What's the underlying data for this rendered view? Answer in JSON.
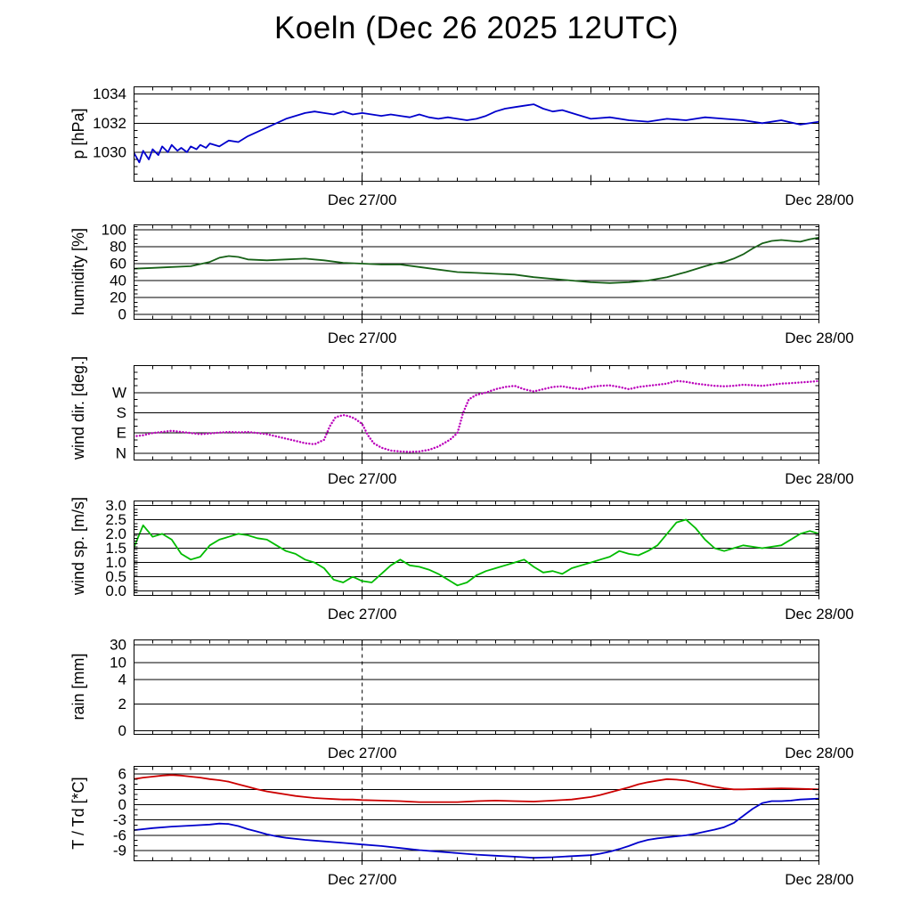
{
  "title": "Koeln (Dec 26 2025 12UTC)",
  "x_axis": {
    "range": [
      0,
      36
    ],
    "minor_step": 1,
    "major_ticks": [
      12,
      24,
      36
    ],
    "labeled_ticks": [
      {
        "value": 12,
        "label": "Dec 27/00"
      },
      {
        "value": 36,
        "label": "Dec 28/00"
      }
    ],
    "vline": {
      "value": 12,
      "style": "dashed"
    }
  },
  "chart_data": [
    {
      "type": "line",
      "ylabel": "p [hPa]",
      "ylim": [
        1028,
        1034.5
      ],
      "y_minor_step": 0.5,
      "yticks": [
        {
          "value": 1030,
          "label": "1030"
        },
        {
          "value": 1032,
          "label": "1032"
        },
        {
          "value": 1034,
          "label": "1034"
        }
      ],
      "series": [
        {
          "name": "pressure",
          "color": "#0000cc",
          "x": [
            0,
            0.3,
            0.5,
            0.8,
            1,
            1.3,
            1.5,
            1.8,
            2,
            2.3,
            2.5,
            2.8,
            3,
            3.3,
            3.5,
            3.8,
            4,
            4.5,
            5,
            5.5,
            6,
            6.5,
            7,
            7.5,
            8,
            8.5,
            9,
            9.5,
            10,
            10.5,
            11,
            11.5,
            12,
            12.5,
            13,
            13.5,
            14,
            14.5,
            15,
            15.5,
            16,
            16.5,
            17,
            17.5,
            18,
            18.5,
            19,
            19.5,
            20,
            20.5,
            21,
            21.5,
            22,
            22.5,
            23,
            23.5,
            24,
            25,
            26,
            27,
            28,
            29,
            30,
            31,
            32,
            33,
            34,
            35,
            36
          ],
          "values": [
            1030.0,
            1029.3,
            1030.1,
            1029.5,
            1030.2,
            1029.8,
            1030.4,
            1030.0,
            1030.5,
            1030.1,
            1030.3,
            1030.0,
            1030.4,
            1030.2,
            1030.5,
            1030.3,
            1030.6,
            1030.4,
            1030.8,
            1030.7,
            1031.1,
            1031.4,
            1031.7,
            1032.0,
            1032.3,
            1032.5,
            1032.7,
            1032.8,
            1032.7,
            1032.6,
            1032.8,
            1032.6,
            1032.7,
            1032.6,
            1032.5,
            1032.6,
            1032.5,
            1032.4,
            1032.6,
            1032.4,
            1032.3,
            1032.4,
            1032.3,
            1032.2,
            1032.3,
            1032.5,
            1032.8,
            1033.0,
            1033.1,
            1033.2,
            1033.3,
            1033.0,
            1032.8,
            1032.9,
            1032.7,
            1032.5,
            1032.3,
            1032.4,
            1032.2,
            1032.1,
            1032.3,
            1032.2,
            1032.4,
            1032.3,
            1032.2,
            1032.0,
            1032.2,
            1031.9,
            1032.1
          ]
        }
      ]
    },
    {
      "type": "line",
      "ylabel": "humidity [%]",
      "ylim": [
        -6,
        106
      ],
      "y_minor_step": 5,
      "yticks": [
        {
          "value": 0,
          "label": "0"
        },
        {
          "value": 20,
          "label": "20"
        },
        {
          "value": 40,
          "label": "40"
        },
        {
          "value": 60,
          "label": "60"
        },
        {
          "value": 80,
          "label": "80"
        },
        {
          "value": 100,
          "label": "100"
        }
      ],
      "series": [
        {
          "name": "humidity",
          "color": "#176117",
          "x": [
            0,
            1,
            2,
            3,
            4,
            4.5,
            5,
            5.5,
            6,
            7,
            8,
            9,
            10,
            11,
            12,
            13,
            14,
            15,
            16,
            17,
            18,
            19,
            20,
            21,
            22,
            23,
            24,
            25,
            26,
            27,
            28,
            29,
            30,
            30.5,
            31,
            31.5,
            32,
            32.5,
            33,
            33.5,
            34,
            34.5,
            35,
            35.5,
            36
          ],
          "values": [
            54,
            55,
            56,
            57,
            62,
            67,
            69,
            68,
            65,
            64,
            65,
            66,
            64,
            61,
            60,
            59,
            59,
            56,
            53,
            50,
            49,
            48,
            47,
            44,
            42,
            40,
            38,
            37,
            38,
            40,
            44,
            50,
            57,
            60,
            62,
            66,
            71,
            78,
            84,
            87,
            88,
            87,
            86,
            89,
            91
          ]
        }
      ]
    },
    {
      "type": "line",
      "ylabel": "wind dir. [deg.]",
      "ylim": [
        -30,
        390
      ],
      "y_minor_step": 30,
      "yticks": [
        {
          "value": 0,
          "label": "N"
        },
        {
          "value": 90,
          "label": "E"
        },
        {
          "value": 180,
          "label": "S"
        },
        {
          "value": 270,
          "label": "W"
        }
      ],
      "series": [
        {
          "name": "wind-direction",
          "color": "#bb00bb",
          "style": "dotted",
          "x": [
            0,
            0.5,
            1,
            1.5,
            2,
            2.5,
            3,
            3.5,
            4,
            4.5,
            5,
            5.5,
            6,
            6.5,
            7,
            7.5,
            8,
            8.5,
            9,
            9.5,
            10,
            10.3,
            10.6,
            11,
            11.3,
            11.6,
            12,
            12.3,
            12.6,
            13,
            13.5,
            14,
            14.5,
            15,
            15.5,
            16,
            16.3,
            16.6,
            17,
            17.3,
            17.6,
            18,
            18.5,
            19,
            19.5,
            20,
            20.5,
            21,
            21.5,
            22,
            22.5,
            23,
            23.5,
            24,
            24.5,
            25,
            25.5,
            26,
            26.5,
            27,
            27.5,
            28,
            28.5,
            29,
            29.5,
            30,
            30.5,
            31,
            31.5,
            32,
            32.5,
            33,
            33.5,
            34,
            34.5,
            35,
            35.5,
            36
          ],
          "values": [
            75,
            80,
            90,
            95,
            100,
            95,
            90,
            85,
            88,
            92,
            95,
            93,
            95,
            90,
            85,
            75,
            65,
            55,
            45,
            40,
            60,
            120,
            160,
            170,
            165,
            155,
            130,
            80,
            45,
            25,
            12,
            8,
            6,
            8,
            15,
            30,
            45,
            60,
            90,
            180,
            240,
            260,
            270,
            285,
            295,
            300,
            285,
            275,
            285,
            295,
            298,
            290,
            285,
            295,
            300,
            302,
            295,
            285,
            295,
            300,
            305,
            310,
            322,
            318,
            310,
            305,
            300,
            298,
            300,
            305,
            303,
            300,
            305,
            310,
            312,
            315,
            318,
            322
          ]
        }
      ]
    },
    {
      "type": "line",
      "ylabel": "wind sp. [m/s]",
      "ylim": [
        -0.15,
        3.15
      ],
      "y_minor_step": 0.1,
      "yticks": [
        {
          "value": 0,
          "label": "0.0"
        },
        {
          "value": 0.5,
          "label": "0.5"
        },
        {
          "value": 1,
          "label": "1.0"
        },
        {
          "value": 1.5,
          "label": "1.5"
        },
        {
          "value": 2,
          "label": "2.0"
        },
        {
          "value": 2.5,
          "label": "2.5"
        },
        {
          "value": 3,
          "label": "3.0"
        }
      ],
      "series": [
        {
          "name": "wind-speed",
          "color": "#00bb00",
          "x_start": 0,
          "x_step": 0.5,
          "values": [
            1.5,
            2.3,
            1.9,
            2.0,
            1.8,
            1.3,
            1.1,
            1.2,
            1.6,
            1.8,
            1.9,
            2.0,
            1.95,
            1.85,
            1.8,
            1.6,
            1.4,
            1.3,
            1.1,
            1.0,
            0.8,
            0.4,
            0.3,
            0.5,
            0.35,
            0.3,
            0.6,
            0.9,
            1.1,
            0.9,
            0.85,
            0.75,
            0.6,
            0.4,
            0.2,
            0.3,
            0.55,
            0.7,
            0.8,
            0.9,
            1.0,
            1.1,
            0.85,
            0.65,
            0.7,
            0.6,
            0.8,
            0.9,
            1.0,
            1.1,
            1.2,
            1.4,
            1.3,
            1.25,
            1.4,
            1.6,
            2.0,
            2.4,
            2.5,
            2.2,
            1.8,
            1.5,
            1.4,
            1.5,
            1.6,
            1.55,
            1.5,
            1.55,
            1.6,
            1.8,
            2.0,
            2.1,
            2.0
          ]
        }
      ]
    },
    {
      "type": "line",
      "ylabel": "rain [mm]",
      "ylim": [
        0,
        1
      ],
      "yticks": [
        {
          "value": 0.04,
          "label": "0"
        },
        {
          "value": 0.32,
          "label": "2"
        },
        {
          "value": 0.58,
          "label": "4"
        },
        {
          "value": 0.76,
          "label": "10"
        },
        {
          "value": 0.95,
          "label": "30"
        }
      ],
      "series": []
    },
    {
      "type": "line",
      "ylabel": "T / Td [*C]",
      "ylim": [
        -11,
        7.5
      ],
      "y_minor_step": 1,
      "yticks": [
        {
          "value": -9,
          "label": "-9"
        },
        {
          "value": -6,
          "label": "-6"
        },
        {
          "value": -3,
          "label": "-3"
        },
        {
          "value": 0,
          "label": "0"
        },
        {
          "value": 3,
          "label": "3"
        },
        {
          "value": 6,
          "label": "6"
        }
      ],
      "series": [
        {
          "name": "temperature",
          "color": "#cc0000",
          "x": [
            0,
            0.5,
            1,
            1.5,
            2,
            2.5,
            3,
            3.5,
            4,
            4.5,
            5,
            5.5,
            6,
            6.5,
            7,
            7.5,
            8,
            8.5,
            9,
            9.5,
            10,
            10.5,
            11,
            11.5,
            12,
            13,
            14,
            15,
            16,
            17,
            18,
            19,
            20,
            21,
            22,
            23,
            24,
            24.5,
            25,
            25.5,
            26,
            26.5,
            27,
            27.5,
            28,
            28.5,
            29,
            29.5,
            30,
            30.5,
            31,
            31.5,
            32,
            33,
            34,
            35,
            36
          ],
          "values": [
            5.0,
            5.3,
            5.5,
            5.7,
            5.8,
            5.7,
            5.5,
            5.3,
            5.0,
            4.8,
            4.5,
            4.0,
            3.5,
            3.0,
            2.6,
            2.3,
            2.0,
            1.7,
            1.5,
            1.3,
            1.2,
            1.1,
            1.0,
            1.0,
            0.9,
            0.8,
            0.7,
            0.5,
            0.5,
            0.5,
            0.7,
            0.8,
            0.7,
            0.6,
            0.8,
            1.0,
            1.5,
            1.9,
            2.4,
            2.9,
            3.4,
            4.0,
            4.4,
            4.7,
            5.0,
            4.9,
            4.7,
            4.3,
            3.9,
            3.5,
            3.2,
            3.0,
            3.0,
            3.1,
            3.2,
            3.1,
            3.0
          ]
        },
        {
          "name": "dew-point",
          "color": "#0000cc",
          "x": [
            0,
            1,
            2,
            3,
            4,
            4.5,
            5,
            5.5,
            6,
            6.5,
            7,
            7.5,
            8,
            9,
            10,
            11,
            12,
            13,
            14,
            15,
            16,
            17,
            18,
            19,
            20,
            21,
            22,
            23,
            24,
            24.5,
            25,
            25.5,
            26,
            26.5,
            27,
            27.5,
            28,
            28.5,
            29,
            29.5,
            30,
            30.5,
            31,
            31.5,
            32,
            32.5,
            33,
            33.5,
            34,
            34.5,
            35,
            35.5,
            36
          ],
          "values": [
            -5.0,
            -4.6,
            -4.3,
            -4.1,
            -3.9,
            -3.7,
            -3.8,
            -4.2,
            -4.8,
            -5.3,
            -5.8,
            -6.2,
            -6.5,
            -6.9,
            -7.2,
            -7.5,
            -7.8,
            -8.1,
            -8.5,
            -8.9,
            -9.2,
            -9.5,
            -9.8,
            -10.0,
            -10.2,
            -10.4,
            -10.3,
            -10.1,
            -9.9,
            -9.6,
            -9.2,
            -8.7,
            -8.1,
            -7.4,
            -6.9,
            -6.6,
            -6.4,
            -6.2,
            -6.0,
            -5.7,
            -5.3,
            -4.9,
            -4.4,
            -3.6,
            -2.2,
            -0.8,
            0.3,
            0.7,
            0.7,
            0.8,
            1.0,
            1.1,
            1.2
          ]
        }
      ]
    }
  ]
}
